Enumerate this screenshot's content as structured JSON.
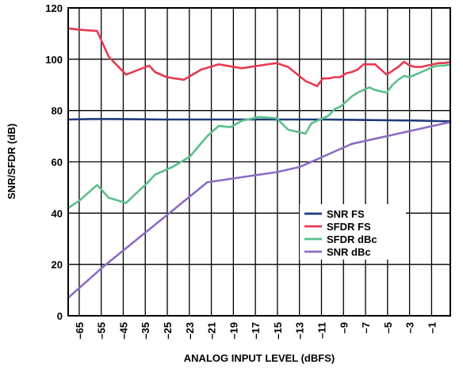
{
  "chart_data": {
    "type": "line",
    "xlabel": "ANALOG INPUT LEVEL (dBFS)",
    "ylabel": "SNR/SFDR (dB)",
    "xlim": [
      -66,
      0
    ],
    "ylim": [
      0,
      120
    ],
    "yticks": [
      0,
      20,
      40,
      60,
      80,
      100,
      120
    ],
    "xtick_labels": [
      "–65",
      "–55",
      "–45",
      "–35",
      "–25",
      "–23",
      "–21",
      "–19",
      "–17",
      "–15",
      "–13",
      "–11",
      "–9",
      "–7",
      "–5",
      "–3",
      "–1"
    ],
    "grid": true,
    "legend_position": "center-right",
    "series": [
      {
        "name": "SNR FS",
        "color": "#1f3a7a",
        "x": [
          -66,
          -62,
          -58,
          -54,
          -50,
          -46,
          -42,
          -38,
          -34,
          -30,
          -26,
          -22,
          -18,
          -14,
          -10,
          -6,
          -2,
          0
        ],
        "y": [
          76.5,
          76.7,
          76.7,
          76.6,
          76.5,
          76.5,
          76.5,
          76.5,
          76.5,
          76.5,
          76.5,
          76.5,
          76.4,
          76.3,
          76.2,
          76.1,
          75.9,
          75.8
        ]
      },
      {
        "name": "SFDR FS",
        "color": "#e8394f",
        "x": [
          -66,
          -64,
          -61,
          -59,
          -56,
          -52,
          -51,
          -49,
          -46,
          -43,
          -40,
          -36,
          -33,
          -30,
          -28,
          -25,
          -24,
          -23,
          -22,
          -21,
          -20,
          -19,
          -18,
          -17,
          -16,
          -15,
          -14,
          -13,
          -12,
          -11,
          -10,
          -9,
          -8,
          -7,
          -6,
          -5,
          -4,
          -3,
          -2,
          -1,
          0
        ],
        "y": [
          112,
          111.5,
          111,
          101,
          94,
          97.5,
          95,
          93,
          92,
          96,
          98,
          96.5,
          97.5,
          98.5,
          97,
          91.5,
          90.5,
          89.5,
          92.5,
          92.5,
          93,
          93,
          94.5,
          95,
          96,
          98,
          98,
          98,
          96,
          94,
          95.5,
          97,
          99,
          97.5,
          97,
          97,
          97.5,
          98,
          98.5,
          98.5,
          99
        ]
      },
      {
        "name": "SFDR dBc",
        "color": "#5cbf8c",
        "x": [
          -66,
          -64,
          -61,
          -59,
          -56,
          -52,
          -51,
          -48,
          -45,
          -42,
          -40,
          -38,
          -36,
          -33,
          -30,
          -28,
          -26,
          -25,
          -24,
          -23,
          -22,
          -21,
          -20,
          -19,
          -18,
          -17,
          -16,
          -15,
          -14,
          -13,
          -12,
          -11,
          -10,
          -9,
          -8,
          -7,
          -6,
          -5,
          -4,
          -3,
          -2,
          -1,
          0
        ],
        "y": [
          42,
          45,
          51,
          46,
          44,
          52.5,
          55,
          58,
          62,
          70,
          74,
          73.5,
          76,
          77.5,
          77,
          72.5,
          71.5,
          71,
          75,
          76,
          77,
          78,
          80.5,
          81.5,
          83.5,
          85.5,
          87,
          88,
          89,
          88,
          87.5,
          87,
          90,
          92,
          93.5,
          93,
          94,
          95,
          96,
          97,
          97.5,
          97.5,
          98
        ]
      },
      {
        "name": "SNR dBc",
        "color": "#8c6cc2",
        "x": [
          -66,
          -60,
          -54,
          -48,
          -42,
          -36,
          -30,
          -26,
          -25,
          -24,
          -23,
          -22,
          -21,
          -20,
          -19,
          -18,
          -17,
          -16,
          -15,
          -14,
          -13,
          -12,
          -11,
          -10,
          -9,
          -8,
          -7,
          -6,
          -5,
          -4,
          -3,
          -2,
          -1,
          0
        ],
        "y": [
          7,
          19,
          30,
          41,
          52,
          54,
          56,
          58,
          59,
          60,
          61,
          62,
          63,
          64,
          65,
          66,
          67,
          67.5,
          68,
          68.5,
          69,
          69.5,
          70,
          70.5,
          71,
          71.5,
          72,
          72.5,
          73,
          73.5,
          74,
          74.5,
          75,
          75.5
        ]
      }
    ]
  }
}
